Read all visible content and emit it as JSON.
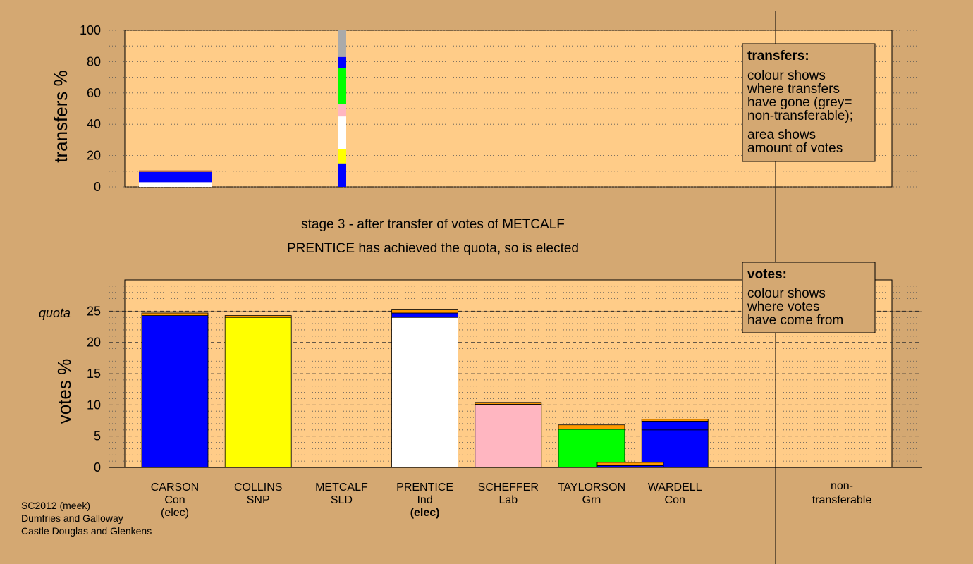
{
  "footer": {
    "line1": "SC2012 (meek)",
    "line2": "Dumfries and Galloway",
    "line3": "Castle Douglas and Glenkens"
  },
  "caption": {
    "line1": "stage 3 - after transfer of votes of METCALF",
    "line2": "PRENTICE has achieved the quota, so is elected"
  },
  "legend_transfers": {
    "title": "transfers:",
    "lines": [
      "colour shows",
      "where transfers",
      "have gone (grey=",
      "non-transferable);"
    ],
    "lines2": [
      "area shows",
      "amount of votes"
    ]
  },
  "legend_votes": {
    "title": "votes:",
    "lines": [
      "colour shows",
      "where votes",
      "have come from"
    ]
  },
  "colors": {
    "background": "#d4a872",
    "plot_bg": "#ffcc88",
    "Con": "#0000ff",
    "SNP": "#ffff00",
    "Ind": "#ffffff",
    "Lab": "#ffb6c1",
    "Grn": "#00ff00",
    "SLD": "#ff9900",
    "transfer": "#ff9900",
    "nontransferable": "#aaaaaa"
  },
  "chart_data": [
    {
      "type": "bar",
      "panel": "transfers",
      "ylabel": "transfers %",
      "ylim": [
        0,
        100
      ],
      "yticks": [
        0,
        20,
        40,
        60,
        80,
        100
      ],
      "grid": true,
      "bars": [
        {
          "candidate": "CARSON",
          "segments": [
            {
              "to": "CARSON",
              "party": "Con",
              "value": 3
            },
            {
              "to": "SLD",
              "party": "SLD",
              "value": 7.5
            }
          ],
          "stripe_segments": [
            {
              "party": "white",
              "value": 3
            },
            {
              "party": "Con",
              "value": 7.5
            }
          ]
        },
        {
          "candidate": "METCALF",
          "segments": [
            {
              "to": "CARSON",
              "party": "Con",
              "value": 15
            },
            {
              "to": "COLLINS",
              "party": "SNP",
              "value": 9
            },
            {
              "to": "PRENTICE",
              "party": "Ind",
              "value": 21
            },
            {
              "to": "SCHEFFER",
              "party": "Lab",
              "value": 8
            },
            {
              "to": "TAYLORSON",
              "party": "Grn",
              "value": 23
            },
            {
              "to": "WARDELL",
              "party": "Con",
              "value": 7
            },
            {
              "to": "non-transferable",
              "party": "nontransferable",
              "value": 17
            }
          ]
        }
      ]
    },
    {
      "type": "bar",
      "panel": "votes",
      "ylabel": "votes %",
      "ylim": [
        0,
        30
      ],
      "yticks": [
        0,
        5,
        10,
        15,
        20,
        25
      ],
      "quota": 24.9,
      "quota_label": "quota",
      "grid": true,
      "candidates": [
        {
          "name": "CARSON",
          "party": "Con",
          "status": "(elec)",
          "segments": [
            {
              "party": "Con",
              "value": 24.3
            },
            {
              "party": "transfer",
              "value": 0.4
            }
          ]
        },
        {
          "name": "COLLINS",
          "party": "SNP",
          "status": "",
          "segments": [
            {
              "party": "SNP",
              "value": 24.0
            },
            {
              "party": "transfer",
              "value": 0.3
            }
          ]
        },
        {
          "name": "METCALF",
          "party": "SLD",
          "status": "",
          "segments": []
        },
        {
          "name": "PRENTICE",
          "party": "Ind",
          "status": "(elec)",
          "segments": [
            {
              "party": "Ind",
              "value": 24.0
            },
            {
              "party": "Con",
              "value": 0.7
            },
            {
              "party": "transfer",
              "value": 0.5
            }
          ]
        },
        {
          "name": "SCHEFFER",
          "party": "Lab",
          "status": "",
          "segments": [
            {
              "party": "Lab",
              "value": 10.1
            },
            {
              "party": "transfer",
              "value": 0.3
            }
          ]
        },
        {
          "name": "TAYLORSON",
          "party": "Grn",
          "status": "",
          "segments": [
            {
              "party": "Grn",
              "value": 6.1
            },
            {
              "party": "transfer",
              "value": 0.7
            }
          ]
        },
        {
          "name": "WARDELL",
          "party": "Con",
          "status": "",
          "segments": [
            {
              "party": "Con",
              "value": 6.0
            },
            {
              "party": "Con",
              "value": 1.4
            },
            {
              "party": "transfer",
              "value": 0.3
            }
          ]
        }
      ],
      "nontransferable": {
        "label1": "non-",
        "label2": "transferable",
        "segments": [
          {
            "party": "Con",
            "value": 0.3
          },
          {
            "party": "transfer",
            "value": 0.5
          }
        ]
      }
    }
  ]
}
